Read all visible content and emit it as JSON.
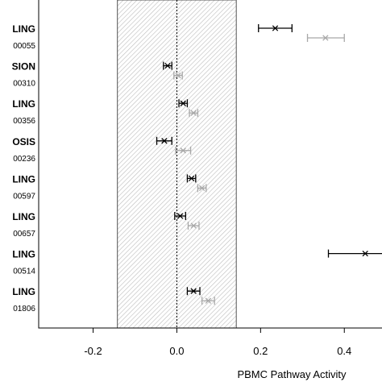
{
  "chart_data": {
    "type": "scatter",
    "xlabel": "PBMC Pathway Activity",
    "xlim": [
      -0.33,
      0.49
    ],
    "x_ticks": [
      -0.2,
      0.0,
      0.2,
      0.4
    ],
    "x_tick_labels": [
      "-0.2",
      "0.0",
      "0.2",
      "0.4"
    ],
    "shaded_interval": [
      -0.142,
      0.142
    ],
    "reference_line": 0.0,
    "grid": false,
    "legend": "none",
    "colors": {
      "series_a": "#000000",
      "series_b": "#a8a8a8",
      "shade": "#bdbdbd"
    },
    "rows": [
      {
        "label": "LING",
        "code": "00055",
        "a": {
          "value": 0.235,
          "low": 0.195,
          "high": 0.275
        },
        "b": {
          "value": 0.355,
          "low": 0.312,
          "high": 0.4
        }
      },
      {
        "label": "SION",
        "code": "00310",
        "a": {
          "value": -0.022,
          "low": -0.032,
          "high": -0.012
        },
        "b": {
          "value": 0.003,
          "low": -0.007,
          "high": 0.013
        }
      },
      {
        "label": "LING",
        "code": "00356",
        "a": {
          "value": 0.015,
          "low": 0.005,
          "high": 0.025
        },
        "b": {
          "value": 0.04,
          "low": 0.03,
          "high": 0.05
        }
      },
      {
        "label": "OSIS",
        "code": "00236",
        "a": {
          "value": -0.03,
          "low": -0.048,
          "high": -0.012
        },
        "b": {
          "value": 0.015,
          "low": -0.003,
          "high": 0.033
        }
      },
      {
        "label": "LING",
        "code": "00597",
        "a": {
          "value": 0.035,
          "low": 0.025,
          "high": 0.045
        },
        "b": {
          "value": 0.06,
          "low": 0.05,
          "high": 0.07
        }
      },
      {
        "label": "LING",
        "code": "00657",
        "a": {
          "value": 0.008,
          "low": -0.005,
          "high": 0.021
        },
        "b": {
          "value": 0.04,
          "low": 0.027,
          "high": 0.053
        }
      },
      {
        "label": "LING",
        "code": "00514",
        "a": {
          "value": 0.45,
          "low": 0.362,
          "high": 0.52
        },
        "b": null
      },
      {
        "label": "LING",
        "code": "01806",
        "a": {
          "value": 0.04,
          "low": 0.025,
          "high": 0.055
        },
        "b": {
          "value": 0.075,
          "low": 0.06,
          "high": 0.09
        }
      }
    ]
  }
}
